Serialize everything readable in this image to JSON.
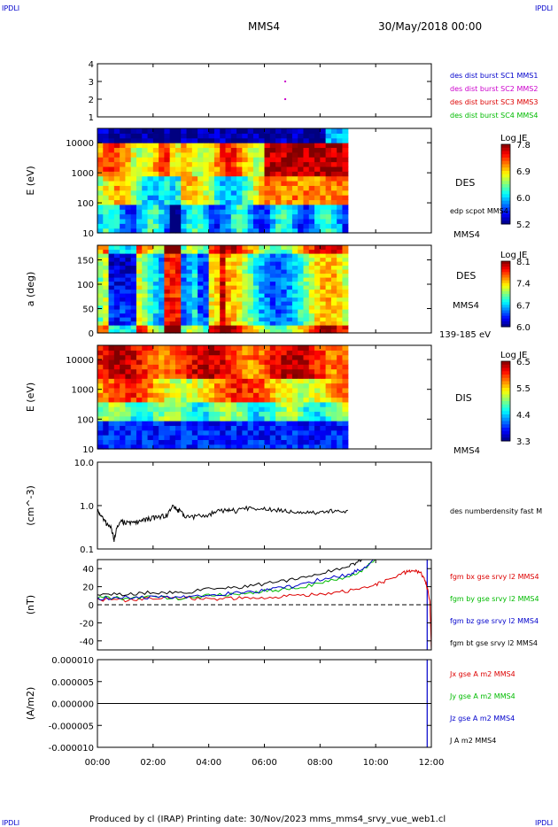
{
  "header": {
    "corner_tl": "IPDLI",
    "corner_tr": "IPDLI",
    "corner_bl": "IPDLI",
    "corner_br": "IPDLI",
    "title": "MMS4",
    "date": "30/May/2018 00:00"
  },
  "footer": {
    "text": "Produced by cl (IRAP)   Printing date: 30/Nov/2023   mms_mms4_srvy_vue_web1.cl"
  },
  "colors": {
    "blue": "#0000cc",
    "magenta": "#cc00cc",
    "red": "#dd0000",
    "green": "#00bb00",
    "black": "#000000"
  },
  "chart_data": [
    {
      "type": "scatter",
      "ylim": [
        1,
        4
      ],
      "yticks": [
        "1",
        "2",
        "3",
        "4"
      ],
      "legend": [
        {
          "label": "des dist burst SC1 MMS1",
          "color": "#0000cc"
        },
        {
          "label": "des dist burst SC2 MMS2",
          "color": "#cc00cc"
        },
        {
          "label": "des dist burst SC3 MMS3",
          "color": "#dd0000"
        },
        {
          "label": "des dist burst SC4 MMS4",
          "color": "#00bb00"
        }
      ],
      "points": [
        {
          "x": 6.75,
          "y": 3,
          "color": "#cc00cc"
        },
        {
          "x": 6.75,
          "y": 2,
          "color": "#cc00cc"
        }
      ]
    },
    {
      "type": "heatmap",
      "ylabel": "E (eV)",
      "yscale": "log",
      "ylim": [
        10,
        30000
      ],
      "yticks": [
        "10",
        "100",
        "1000",
        "10000"
      ],
      "side_labels": [
        "DES",
        "edp scpot MMS4",
        "MMS4"
      ],
      "colorbar": {
        "title": "Log JE",
        "ticks": [
          "7.8",
          "6.9",
          "6.0",
          "5.2"
        ]
      },
      "data_end_hour": 9.0
    },
    {
      "type": "heatmap",
      "ylabel": "a (deg)",
      "ylim": [
        0,
        180
      ],
      "yticks": [
        "0",
        "50",
        "100",
        "150"
      ],
      "side_labels": [
        "DES",
        "MMS4",
        "139-185 eV"
      ],
      "colorbar": {
        "title": "Log JE",
        "ticks": [
          "8.1",
          "7.4",
          "6.7",
          "6.0"
        ]
      },
      "data_end_hour": 9.0
    },
    {
      "type": "heatmap",
      "ylabel": "E (eV)",
      "yscale": "log",
      "ylim": [
        10,
        30000
      ],
      "yticks": [
        "10",
        "100",
        "1000",
        "10000"
      ],
      "side_labels": [
        "DIS",
        "MMS4"
      ],
      "colorbar": {
        "title": "Log JE",
        "ticks": [
          "6.5",
          "5.5",
          "4.4",
          "3.3"
        ]
      },
      "data_end_hour": 9.0
    },
    {
      "type": "line",
      "ylabel": "(cm^-3)",
      "yscale": "log",
      "ylim": [
        0.1,
        10
      ],
      "yticks": [
        "0.1",
        "1.0",
        "10.0"
      ],
      "series": [
        {
          "name": "des numberdensity fast M",
          "color": "#000000",
          "x": [
            0,
            0.1,
            0.3,
            0.5,
            0.6,
            0.8,
            1.0,
            1.3,
            1.6,
            1.9,
            2.2,
            2.5,
            2.7,
            2.9,
            3.1,
            3.5,
            4.0,
            4.4,
            4.7,
            5.0,
            5.5,
            6.0,
            6.5,
            7.0,
            7.5,
            8.0,
            8.5,
            9.0
          ],
          "y": [
            0.8,
            0.6,
            0.4,
            0.3,
            0.15,
            0.45,
            0.4,
            0.4,
            0.45,
            0.5,
            0.55,
            0.6,
            0.95,
            0.8,
            0.6,
            0.55,
            0.62,
            0.75,
            0.8,
            0.75,
            0.9,
            0.85,
            0.8,
            0.75,
            0.72,
            0.7,
            0.75,
            0.78
          ]
        }
      ]
    },
    {
      "type": "line",
      "ylabel": "(nT)",
      "ylim": [
        -50,
        50
      ],
      "yticks": [
        "-40",
        "-20",
        "0",
        "20",
        "40"
      ],
      "series": [
        {
          "name": "fgm bx gse srvy l2 MMS4",
          "color": "#dd0000",
          "x": [
            0,
            1,
            2,
            3,
            4,
            5,
            6,
            7,
            8,
            9,
            10,
            10.5,
            11,
            11.3,
            11.6,
            11.8,
            11.95,
            12
          ],
          "y": [
            6,
            5,
            7,
            8,
            6,
            7,
            7,
            10,
            12,
            15,
            22,
            28,
            35,
            38,
            36,
            25,
            5,
            -50
          ]
        },
        {
          "name": "fgm by gse srvy l2 MMS4",
          "color": "#00bb00",
          "x": [
            0,
            1,
            2,
            3,
            4,
            5,
            6,
            7,
            8,
            9,
            9.5,
            10
          ],
          "y": [
            8,
            7,
            9,
            7,
            10,
            12,
            15,
            18,
            24,
            30,
            38,
            50
          ]
        },
        {
          "name": "fgm bz gse srvy l2 MMS4",
          "color": "#0000cc",
          "x": [
            0,
            1,
            2,
            3,
            4,
            5,
            6,
            7,
            8,
            9,
            9.5,
            10
          ],
          "y": [
            7,
            8,
            8,
            9,
            11,
            13,
            16,
            20,
            28,
            33,
            40,
            50
          ]
        },
        {
          "name": "fgm bt gse srvy l2 MMS4",
          "color": "#000000",
          "x": [
            0,
            1,
            2,
            3,
            4,
            5,
            6,
            7,
            8,
            9,
            9.5
          ],
          "y": [
            12,
            11,
            14,
            13,
            17,
            19,
            23,
            28,
            35,
            42,
            50
          ]
        }
      ],
      "markers": [
        {
          "type": "vline",
          "x": 11.85,
          "color": "#0000cc"
        },
        {
          "type": "hline",
          "y": 0,
          "style": "dashed"
        }
      ]
    },
    {
      "type": "line",
      "ylabel": "(A/m2)",
      "ylim": [
        -1e-05,
        1e-05
      ],
      "yticks": [
        "-0.000010",
        "-0.000005",
        "0.000000",
        "0.000005",
        "0.000010"
      ],
      "series": [
        {
          "name": "Jx gse A m2 MMS4",
          "color": "#dd0000",
          "x": [
            0,
            12
          ],
          "y": [
            0,
            0
          ]
        },
        {
          "name": "Jy gse A m2 MMS4",
          "color": "#00bb00",
          "x": [
            0,
            12
          ],
          "y": [
            0,
            0
          ]
        },
        {
          "name": "Jz gse A m2 MMS4",
          "color": "#0000cc",
          "x": [
            0,
            12
          ],
          "y": [
            0,
            0
          ]
        },
        {
          "name": "J A m2 MMS4",
          "color": "#000000",
          "x": [
            0,
            12
          ],
          "y": [
            0,
            0
          ]
        }
      ],
      "markers": [
        {
          "type": "vline",
          "x": 11.85,
          "color": "#0000cc"
        }
      ]
    }
  ],
  "xaxis": {
    "ticks": [
      "00:00",
      "02:00",
      "04:00",
      "06:00",
      "08:00",
      "10:00",
      "12:00"
    ],
    "xlim": [
      0,
      12
    ]
  }
}
